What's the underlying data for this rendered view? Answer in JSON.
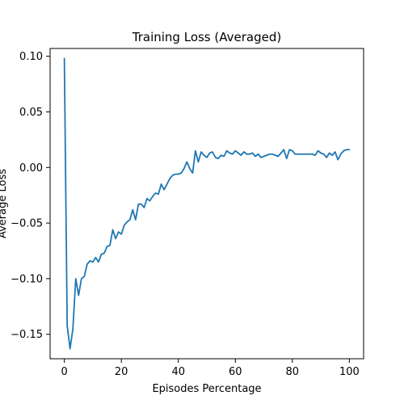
{
  "chart_data": {
    "type": "line",
    "title": "Training Loss (Averaged)",
    "xlabel": "Episodes Percentage",
    "ylabel": "Average Loss",
    "xlim": [
      -5,
      105
    ],
    "ylim": [
      -0.172,
      0.107
    ],
    "x_ticks": [
      0,
      20,
      40,
      60,
      80,
      100
    ],
    "x_tick_labels": [
      "0",
      "20",
      "40",
      "60",
      "80",
      "100"
    ],
    "y_ticks": [
      -0.15,
      -0.1,
      -0.05,
      0.0,
      0.05,
      0.1
    ],
    "y_tick_labels": [
      "−0.15",
      "−0.10",
      "−0.05",
      "0.00",
      "0.05",
      "0.10"
    ],
    "grid": false,
    "series": [
      {
        "color": "#1f77b4",
        "x": [
          0,
          1,
          2,
          3,
          4,
          5,
          6,
          7,
          8,
          9,
          10,
          11,
          12,
          13,
          14,
          15,
          16,
          17,
          18,
          19,
          20,
          21,
          22,
          23,
          24,
          25,
          26,
          27,
          28,
          29,
          30,
          31,
          32,
          33,
          34,
          35,
          36,
          37,
          38,
          39,
          40,
          41,
          42,
          43,
          44,
          45,
          46,
          47,
          48,
          49,
          50,
          51,
          52,
          53,
          54,
          55,
          56,
          57,
          58,
          59,
          60,
          61,
          62,
          63,
          64,
          65,
          66,
          67,
          68,
          69,
          70,
          71,
          72,
          73,
          74,
          75,
          76,
          77,
          78,
          79,
          80,
          81,
          82,
          83,
          84,
          85,
          86,
          87,
          88,
          89,
          90,
          91,
          92,
          93,
          94,
          95,
          96,
          97,
          98,
          99,
          100
        ],
        "values": [
          0.098,
          -0.142,
          -0.163,
          -0.145,
          -0.1,
          -0.115,
          -0.1,
          -0.098,
          -0.087,
          -0.084,
          -0.085,
          -0.081,
          -0.085,
          -0.078,
          -0.077,
          -0.071,
          -0.07,
          -0.056,
          -0.064,
          -0.058,
          -0.06,
          -0.052,
          -0.049,
          -0.047,
          -0.038,
          -0.047,
          -0.033,
          -0.033,
          -0.036,
          -0.028,
          -0.03,
          -0.026,
          -0.023,
          -0.024,
          -0.015,
          -0.02,
          -0.015,
          -0.01,
          -0.007,
          -0.006,
          -0.006,
          -0.005,
          -0.001,
          0.005,
          -0.001,
          -0.005,
          0.015,
          0.005,
          0.014,
          0.011,
          0.009,
          0.013,
          0.014,
          0.009,
          0.008,
          0.011,
          0.01,
          0.015,
          0.013,
          0.012,
          0.015,
          0.013,
          0.011,
          0.014,
          0.012,
          0.012,
          0.013,
          0.01,
          0.012,
          0.009,
          0.01,
          0.011,
          0.012,
          0.012,
          0.011,
          0.01,
          0.013,
          0.016,
          0.008,
          0.016,
          0.015,
          0.012,
          0.012,
          0.012,
          0.012,
          0.012,
          0.012,
          0.012,
          0.011,
          0.015,
          0.013,
          0.012,
          0.009,
          0.013,
          0.011,
          0.014,
          0.007,
          0.012,
          0.015,
          0.016,
          0.016
        ]
      }
    ]
  }
}
